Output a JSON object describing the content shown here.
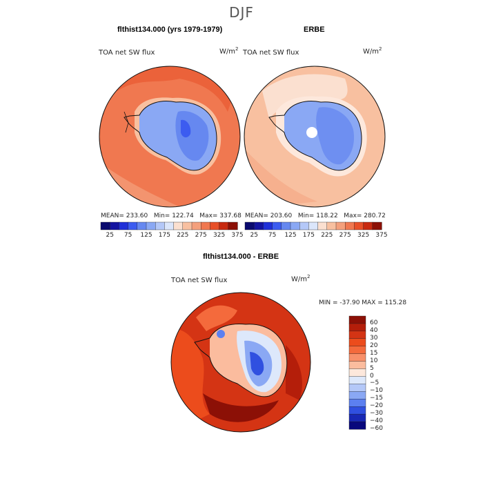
{
  "figure": {
    "title": "DJF"
  },
  "chart_data": [
    {
      "type": "heatmap",
      "projection": "south-polar-stereographic",
      "title": "flthist134.000 (yrs 1979-1979)",
      "variable": "TOA net SW flux",
      "units": "W/m",
      "units_exp": "2",
      "stats": {
        "mean": 233.6,
        "min": 122.74,
        "max": 337.68
      },
      "stats_text": {
        "mean": "MEAN= 233.60",
        "min": "Min= 122.74",
        "max": "Max= 337.68"
      },
      "colorbar_levels": [
        25,
        50,
        75,
        100,
        125,
        150,
        175,
        200,
        225,
        250,
        275,
        300,
        325,
        350,
        375
      ],
      "colorbar_labels": [
        "25",
        "75",
        "125",
        "175",
        "225",
        "275",
        "325",
        "375"
      ],
      "colors": [
        "#0a0a6e",
        "#1414a0",
        "#2030d8",
        "#3c5cf0",
        "#6688f0",
        "#8aa8f4",
        "#b4c8f8",
        "#dbe6fb",
        "#fbe0d0",
        "#f8c0a0",
        "#f4a07c",
        "#f07850",
        "#e85028",
        "#c82a10",
        "#8c1006"
      ]
    },
    {
      "type": "heatmap",
      "projection": "south-polar-stereographic",
      "title": "ERBE",
      "variable": "TOA net SW flux",
      "units": "W/m",
      "units_exp": "2",
      "stats": {
        "mean": 203.6,
        "min": 118.22,
        "max": 280.72
      },
      "stats_text": {
        "mean": "MEAN= 203.60",
        "min": "Min= 118.22",
        "max": "Max= 280.72"
      },
      "colorbar_levels": [
        25,
        50,
        75,
        100,
        125,
        150,
        175,
        200,
        225,
        250,
        275,
        300,
        325,
        350,
        375
      ],
      "colorbar_labels": [
        "25",
        "75",
        "125",
        "175",
        "225",
        "275",
        "325",
        "375"
      ]
    },
    {
      "type": "heatmap",
      "projection": "south-polar-stereographic",
      "title": "flthist134.000 - ERBE",
      "variable": "TOA net SW flux",
      "units": "W/m",
      "units_exp": "2",
      "stats": {
        "min": -37.9,
        "max": 115.28
      },
      "stats_text": "MIN = -37.90 MAX = 115.28",
      "colorbar_levels": [
        60,
        40,
        30,
        20,
        15,
        10,
        5,
        0,
        -5,
        -10,
        -15,
        -20,
        -30,
        -40,
        -60
      ],
      "colorbar_labels": [
        "60",
        "40",
        "30",
        "20",
        "15",
        "10",
        "5",
        "0",
        "−5",
        "−10",
        "−15",
        "−20",
        "−30",
        "−40",
        "−60"
      ],
      "colors": [
        "#8c1006",
        "#b41e0a",
        "#d43414",
        "#ec4c1c",
        "#f46a3c",
        "#f8906a",
        "#fbbc9e",
        "#fde8dc",
        "#dde8fb",
        "#b4c8f8",
        "#8aa8f4",
        "#5c80f0",
        "#3050e0",
        "#1828b4",
        "#08087c"
      ]
    }
  ]
}
